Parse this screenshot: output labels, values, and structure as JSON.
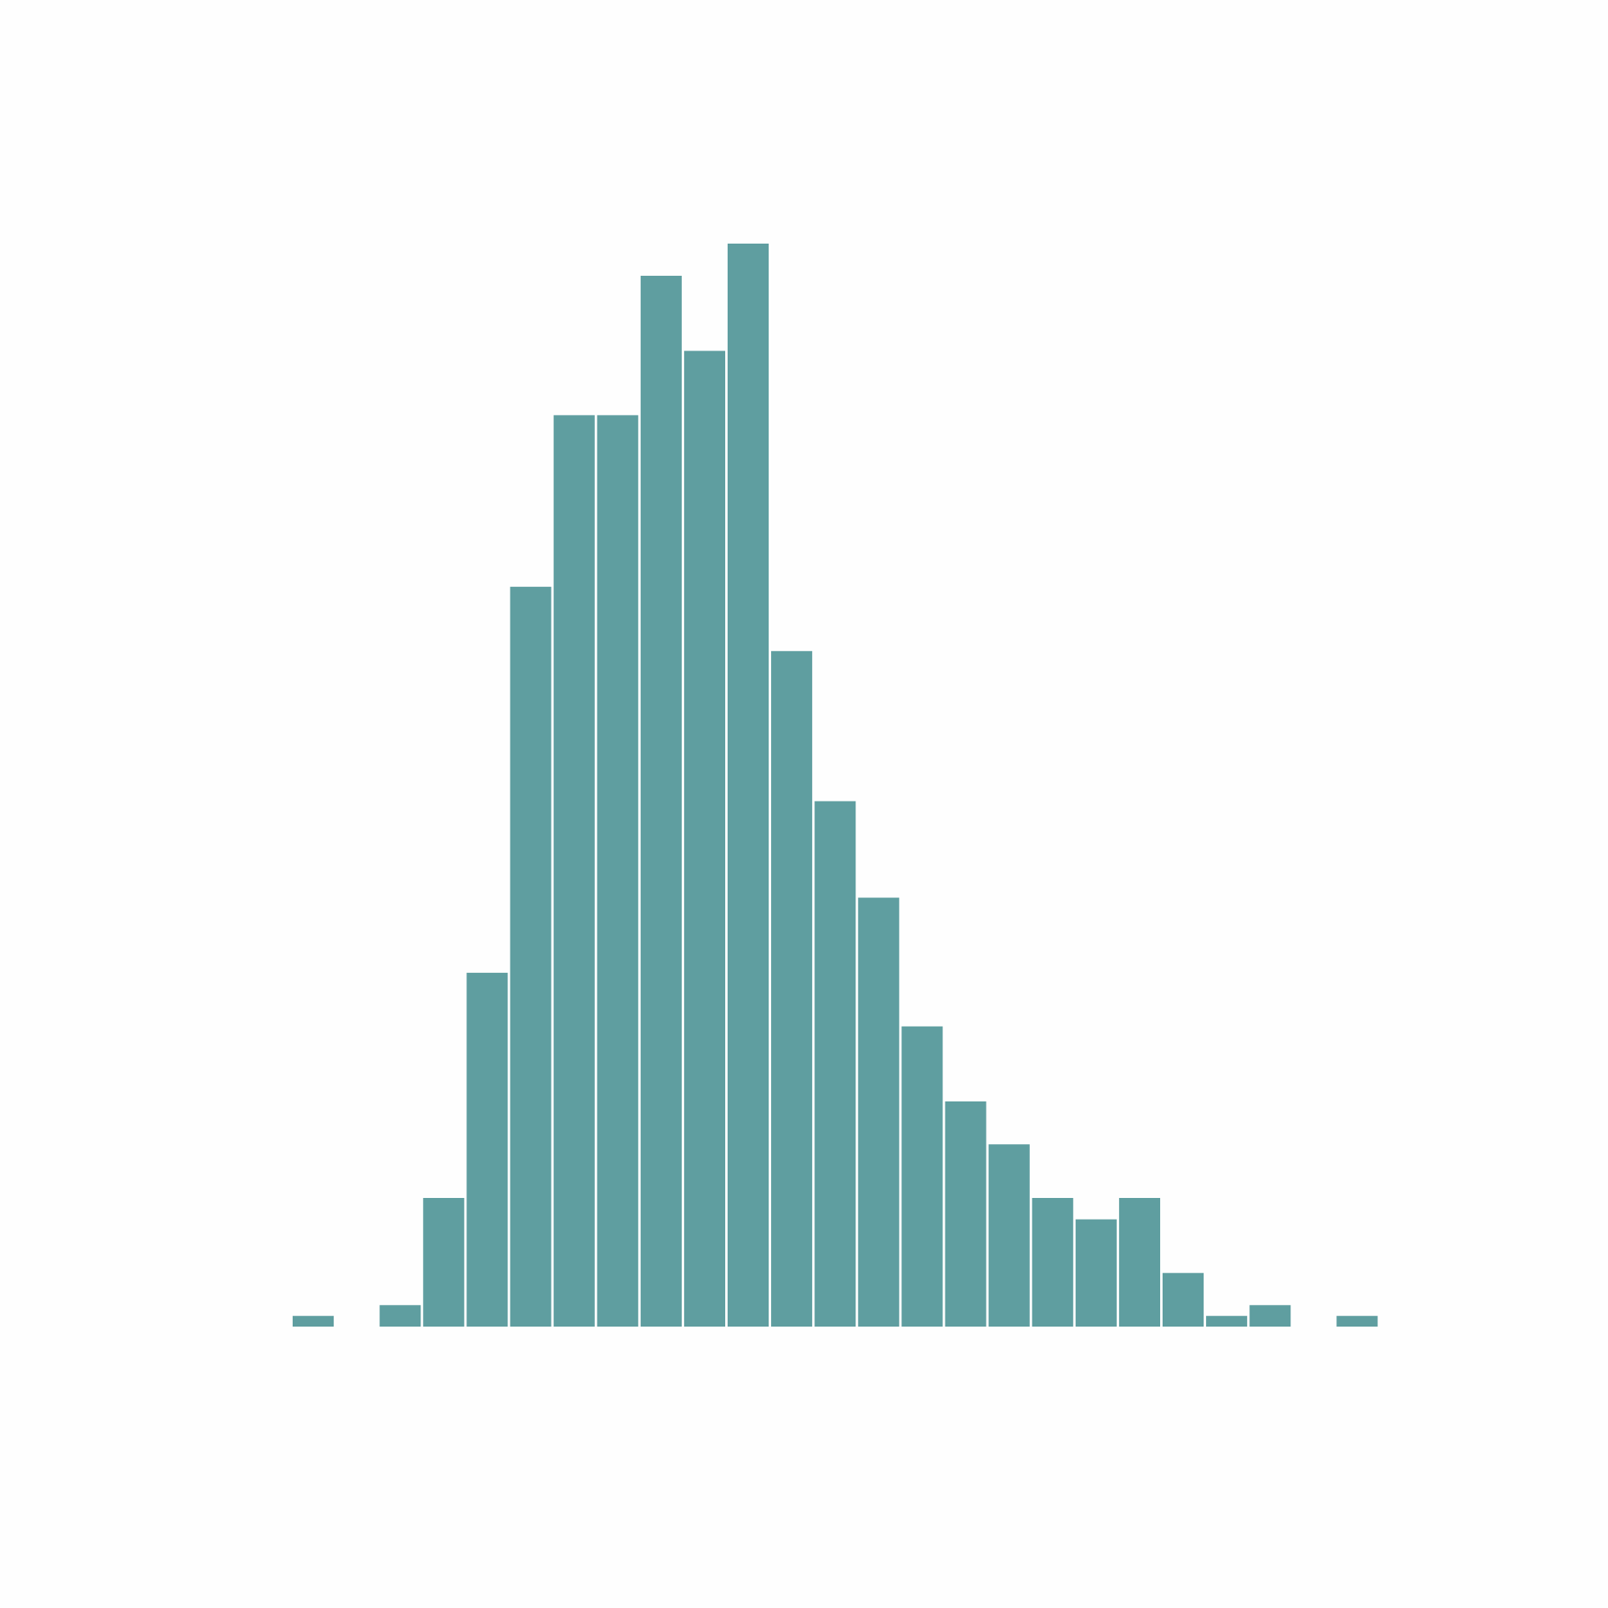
{
  "chart_data": {
    "type": "bar",
    "subtype": "histogram",
    "bar_color": "#5f9ea0",
    "background_color": "#fefefe",
    "axes_visible": false,
    "grid": false,
    "legend": "none",
    "bin_count": 26,
    "values": [
      1,
      0,
      2,
      12,
      33,
      69,
      85,
      85,
      98,
      91,
      101,
      63,
      49,
      40,
      28,
      21,
      17,
      12,
      10,
      12,
      5,
      1,
      2,
      0,
      1,
      0
    ],
    "ylim": [
      0,
      101
    ]
  }
}
